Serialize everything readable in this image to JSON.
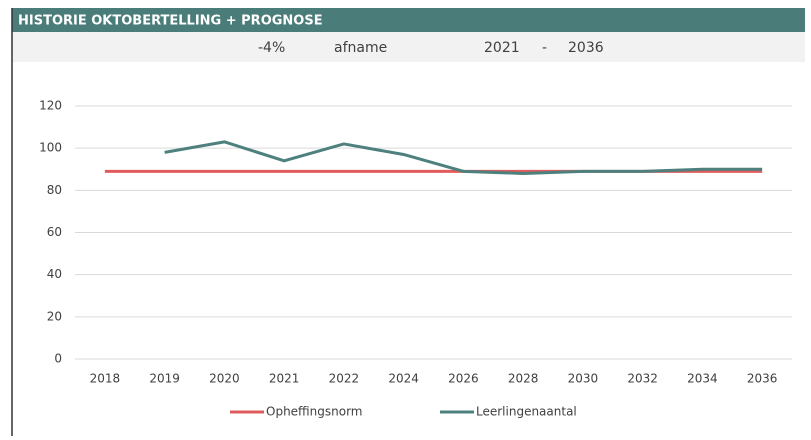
{
  "header": {
    "title": "HISTORIE OKTOBERTELLING + PROGNOSE",
    "change": "-4%",
    "trend": "afname",
    "from": "2021",
    "separator": "-",
    "to": "2036"
  },
  "chart_data": {
    "type": "line",
    "categories": [
      "2018",
      "2019",
      "2020",
      "2021",
      "2022",
      "2024",
      "2026",
      "2028",
      "2030",
      "2032",
      "2034",
      "2036"
    ],
    "series": [
      {
        "name": "Opheffingsnorm",
        "color": "#e05c5c",
        "values": [
          89,
          89,
          89,
          89,
          89,
          89,
          89,
          89,
          89,
          89,
          89,
          89
        ]
      },
      {
        "name": "Leerlingenaantal",
        "color": "#4e807d",
        "values": [
          null,
          98,
          103,
          94,
          102,
          97,
          89,
          88,
          89,
          89,
          90,
          90
        ]
      }
    ],
    "ylim": [
      0,
      120
    ],
    "yticks": [
      0,
      20,
      40,
      60,
      80,
      100,
      120
    ],
    "grid": true,
    "legend": "bottom"
  }
}
